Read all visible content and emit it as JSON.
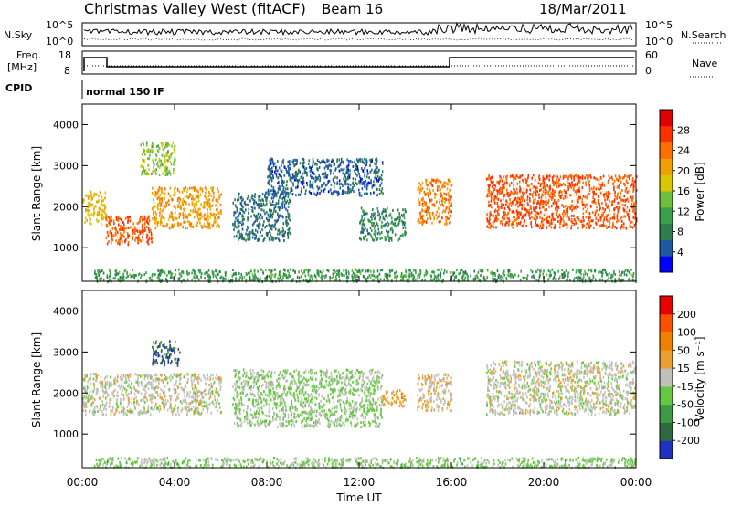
{
  "header": {
    "title": "Christmas Valley West (fitACF)",
    "beam": "Beam 16",
    "date": "18/Mar/2011"
  },
  "status_panels": {
    "nsky": {
      "label": "N.Sky",
      "ticks": [
        "10^5",
        "10^0"
      ]
    },
    "nsearch": {
      "label": "N.Search",
      "ticks": [
        "10^5",
        "10^0"
      ]
    },
    "freq": {
      "label_line1": "Freq.",
      "label_line2": "[MHz]",
      "ticks": [
        "18",
        "8"
      ]
    },
    "nave": {
      "label": "Nave",
      "ticks": [
        "60",
        "0"
      ]
    },
    "cpid": {
      "label": "CPID",
      "value": "normal 150 IF"
    }
  },
  "colors": {
    "power": [
      "#0000ff",
      "#1e5aa0",
      "#2e7d4e",
      "#3aa04a",
      "#6cc03a",
      "#d8c800",
      "#f0a000",
      "#ff7000",
      "#ff3000",
      "#e00000"
    ],
    "velocity": [
      "#2030c0",
      "#2e6a3e",
      "#3c9a44",
      "#66c842",
      "#c0c0bc",
      "#e8a030",
      "#f08000",
      "#ff5000",
      "#e80000"
    ]
  },
  "chart_data": [
    {
      "type": "heatmap",
      "name": "power-panel",
      "xlabel": "Time UT",
      "ylabel": "Slant Range [km]",
      "xlim": [
        0,
        24
      ],
      "ylim": [
        180,
        4500
      ],
      "x_ticks": [
        "00:00",
        "04:00",
        "08:00",
        "12:00",
        "16:00",
        "20:00",
        "00:00"
      ],
      "y_ticks": [
        "1000",
        "2000",
        "3000",
        "4000"
      ],
      "colorbar": {
        "label": "Power [dB]",
        "ticks": [
          "28",
          "24",
          "20",
          "16",
          "12",
          "8",
          "4"
        ],
        "range": [
          0,
          30
        ]
      },
      "regions": [
        {
          "t": [
            0.0,
            1.0
          ],
          "r": [
            1600,
            2400
          ],
          "value": 18
        },
        {
          "t": [
            1.0,
            3.0
          ],
          "r": [
            1100,
            1800
          ],
          "value": 24
        },
        {
          "t": [
            3.0,
            6.0
          ],
          "r": [
            1500,
            2500
          ],
          "value": 20
        },
        {
          "t": [
            2.5,
            4.0
          ],
          "r": [
            2800,
            3600
          ],
          "value": 14
        },
        {
          "t": [
            6.5,
            9.0
          ],
          "r": [
            1200,
            2400
          ],
          "value": 6
        },
        {
          "t": [
            8.0,
            13.0
          ],
          "r": [
            2300,
            3200
          ],
          "value": 5
        },
        {
          "t": [
            12.0,
            14.0
          ],
          "r": [
            1200,
            2000
          ],
          "value": 8
        },
        {
          "t": [
            14.5,
            16.0
          ],
          "r": [
            1600,
            2700
          ],
          "value": 22
        },
        {
          "t": [
            17.5,
            24.0
          ],
          "r": [
            1500,
            2800
          ],
          "value": 24
        },
        {
          "t": [
            0.5,
            24.0
          ],
          "r": [
            200,
            500
          ],
          "value": 10
        }
      ]
    },
    {
      "type": "heatmap",
      "name": "velocity-panel",
      "xlabel": "Time UT",
      "ylabel": "Slant Range [km]",
      "xlim": [
        0,
        24
      ],
      "ylim": [
        180,
        4500
      ],
      "x_ticks": [
        "00:00",
        "04:00",
        "08:00",
        "12:00",
        "16:00",
        "20:00",
        "00:00"
      ],
      "y_ticks": [
        "1000",
        "2000",
        "3000",
        "4000"
      ],
      "colorbar": {
        "label": "Velocity [m s⁻¹]",
        "ticks": [
          "200",
          "100",
          "50",
          "15",
          "-15",
          "-50",
          "-100",
          "-200"
        ],
        "range": [
          -250,
          250
        ]
      },
      "regions": [
        {
          "t": [
            0.0,
            6.0
          ],
          "r": [
            1500,
            2500
          ],
          "value": 0
        },
        {
          "t": [
            3.0,
            4.2
          ],
          "r": [
            2700,
            3300
          ],
          "value": -180
        },
        {
          "t": [
            6.5,
            13.0
          ],
          "r": [
            1200,
            2600
          ],
          "value": -30
        },
        {
          "t": [
            13.0,
            14.0
          ],
          "r": [
            1700,
            2100
          ],
          "value": 60
        },
        {
          "t": [
            14.5,
            16.0
          ],
          "r": [
            1600,
            2500
          ],
          "value": 30
        },
        {
          "t": [
            17.5,
            24.0
          ],
          "r": [
            1500,
            2800
          ],
          "value": 0
        },
        {
          "t": [
            0.5,
            24.0
          ],
          "r": [
            200,
            450
          ],
          "value": -40
        }
      ]
    }
  ]
}
